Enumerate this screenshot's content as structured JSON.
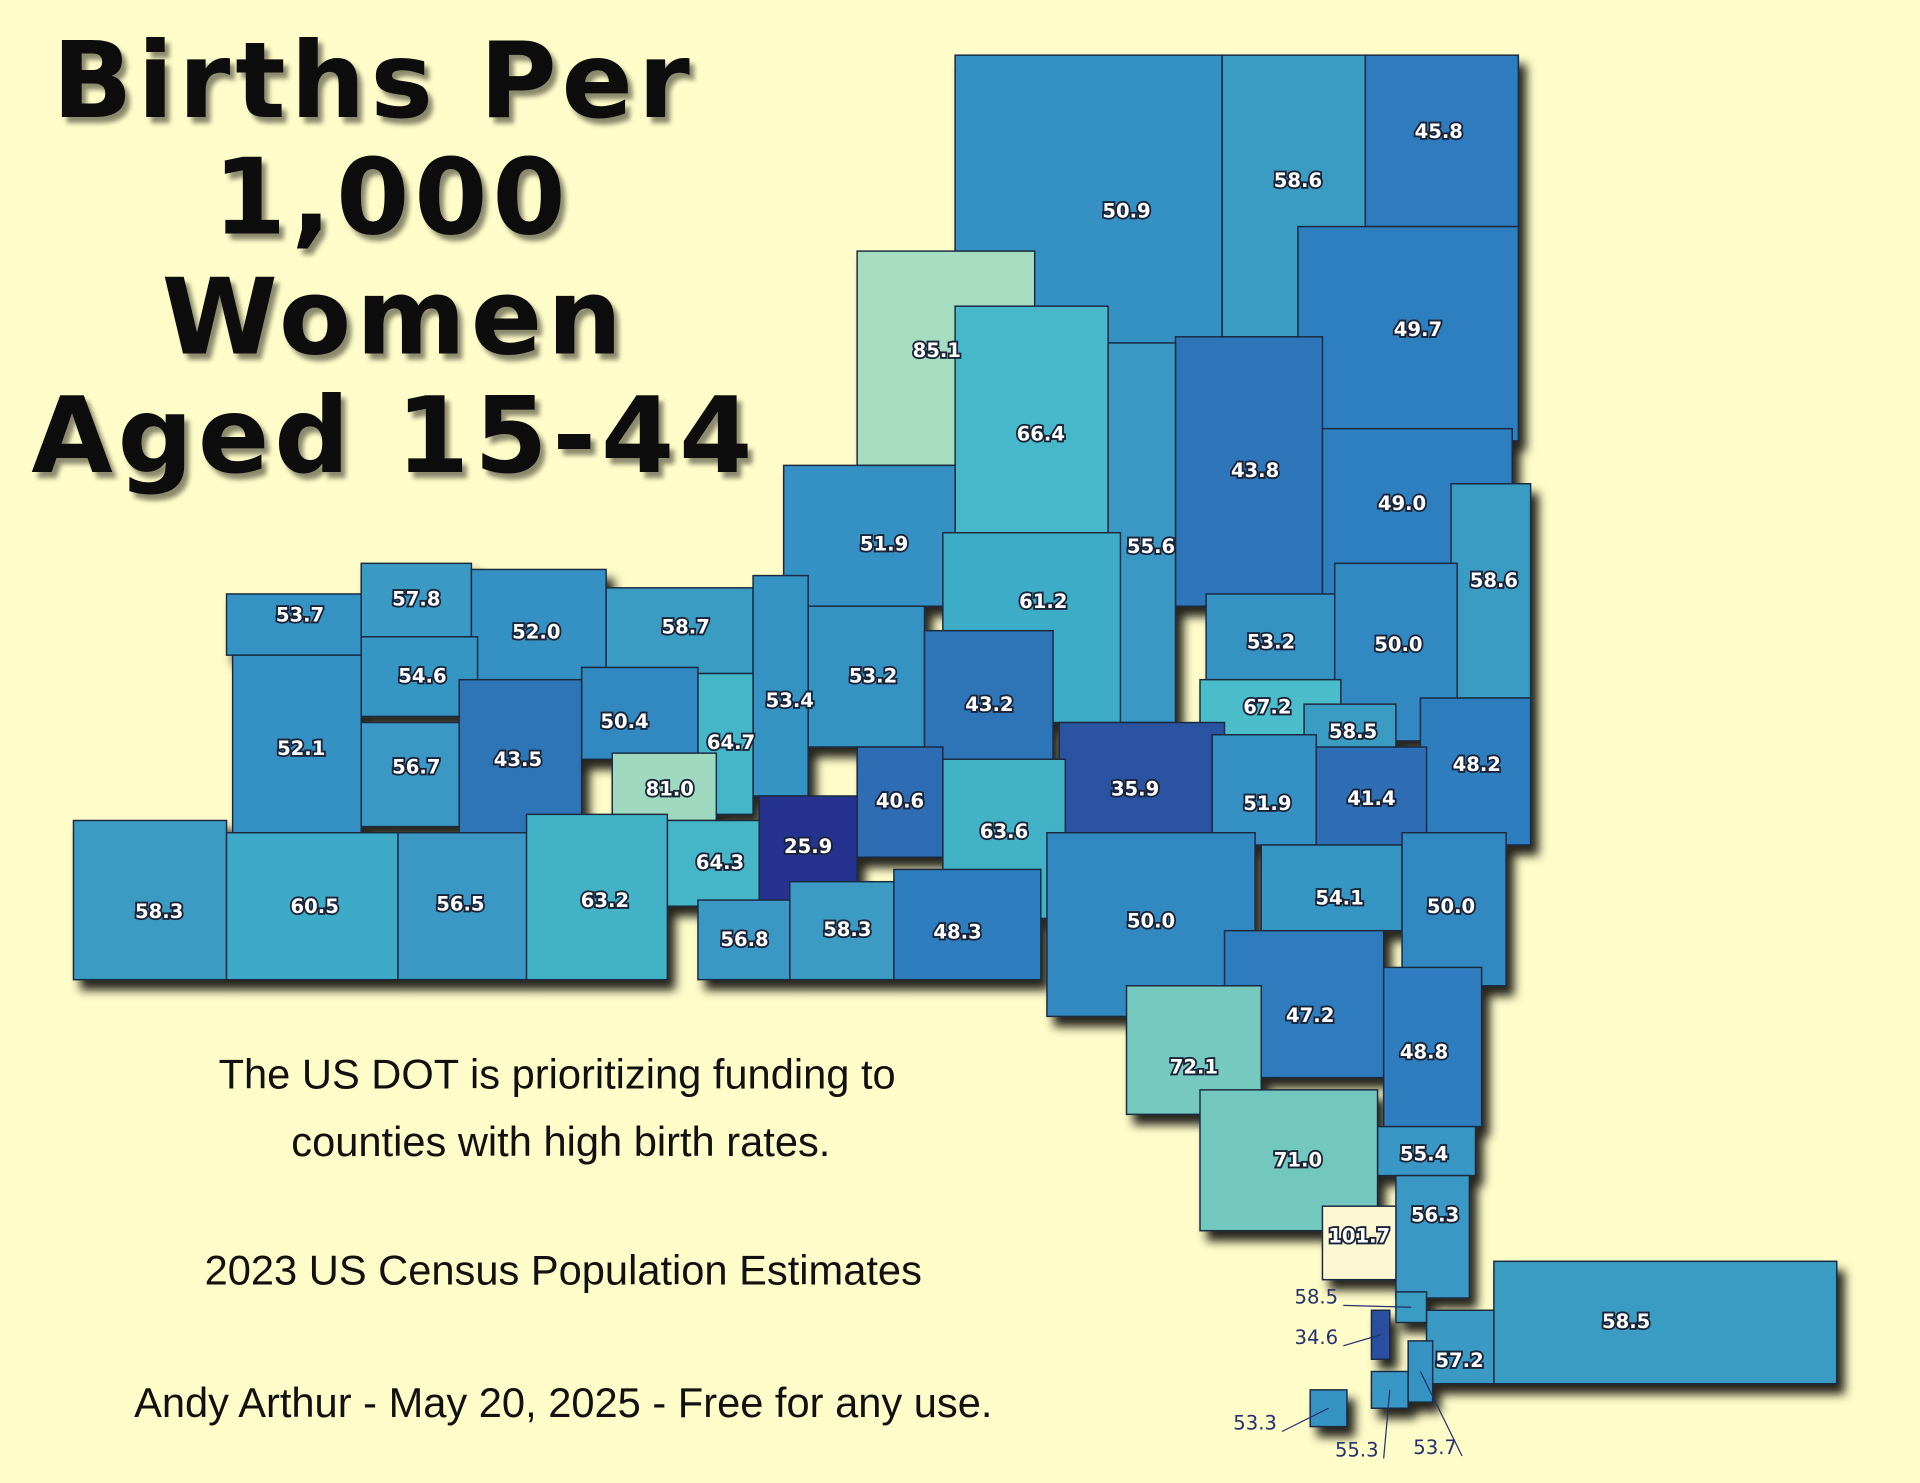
{
  "title_lines": [
    "Births Per",
    "1,000",
    "Women",
    "Aged 15-44"
  ],
  "notes": [
    "The US DOT is prioritizing funding to",
    "counties with high birth rates.",
    "2023 US Census Population Estimates",
    "Andy Arthur - May 20, 2025 - Free for any use."
  ],
  "regions": [
    {
      "value": 45.8,
      "color": "#2f7bbd"
    },
    {
      "value": 58.6,
      "color": "#3a9cc3"
    },
    {
      "value": 50.9,
      "color": "#3590c3"
    },
    {
      "value": 49.7,
      "color": "#2f7fbf"
    },
    {
      "value": 85.1,
      "color": "#a6dcc0"
    },
    {
      "value": 66.4,
      "color": "#46b8c9"
    },
    {
      "value": 43.8,
      "color": "#2f76b9"
    },
    {
      "value": 49.0,
      "label": "49.0",
      "color": "#2f7fbf"
    },
    {
      "value": 55.6,
      "color": "#3a98c4"
    },
    {
      "value": 58.6,
      "color": "#3a9cc3"
    },
    {
      "value": 51.9,
      "color": "#3590c3"
    },
    {
      "value": 61.2,
      "color": "#3eadc7"
    },
    {
      "value": 53.7,
      "color": "#3593c3"
    },
    {
      "value": 57.8,
      "color": "#3a9ac4"
    },
    {
      "value": 52.0,
      "label": "52.0",
      "color": "#3590c3"
    },
    {
      "value": 58.7,
      "color": "#3a9cc3"
    },
    {
      "value": 53.2,
      "color": "#3593c3"
    },
    {
      "value": 50.0,
      "label": "50.0",
      "color": "#3089c1"
    },
    {
      "value": 54.6,
      "color": "#3696c4"
    },
    {
      "value": 53.2,
      "color": "#3593c3"
    },
    {
      "value": 53.4,
      "color": "#3593c3"
    },
    {
      "value": 43.2,
      "color": "#2f74b8"
    },
    {
      "value": 67.2,
      "color": "#4bbcc9"
    },
    {
      "value": 52.1,
      "color": "#3590c3"
    },
    {
      "value": 50.4,
      "color": "#3089c1"
    },
    {
      "value": 64.7,
      "color": "#44b5c8"
    },
    {
      "value": 58.5,
      "color": "#3a9cc3"
    },
    {
      "value": 56.7,
      "color": "#3a98c4"
    },
    {
      "value": 43.5,
      "color": "#2f74b8"
    },
    {
      "value": 48.2,
      "color": "#2f7dbe"
    },
    {
      "value": 81.0,
      "label": "81.0",
      "color": "#9fd9c0"
    },
    {
      "value": 40.6,
      "color": "#2e6cb3"
    },
    {
      "value": 35.9,
      "color": "#2a52a2"
    },
    {
      "value": 51.9,
      "color": "#3590c3"
    },
    {
      "value": 41.4,
      "color": "#2e6eb4"
    },
    {
      "value": 63.6,
      "color": "#42b2c7"
    },
    {
      "value": 25.9,
      "color": "#26338f"
    },
    {
      "value": 64.3,
      "color": "#44b5c8"
    },
    {
      "value": 58.3,
      "color": "#3a9bc3"
    },
    {
      "value": 60.5,
      "color": "#3eaac7"
    },
    {
      "value": 56.5,
      "color": "#3a98c4"
    },
    {
      "value": 63.2,
      "color": "#42b2c7"
    },
    {
      "value": 56.8,
      "color": "#3a98c4"
    },
    {
      "value": 58.3,
      "color": "#3a9bc3"
    },
    {
      "value": 48.3,
      "color": "#2f7dbe"
    },
    {
      "value": 50.0,
      "label": "50.0",
      "color": "#3089c1"
    },
    {
      "value": 54.1,
      "color": "#3696c4"
    },
    {
      "value": 50.0,
      "label": "50.0",
      "color": "#3089c1"
    },
    {
      "value": 47.2,
      "color": "#2f7bbd"
    },
    {
      "value": 72.1,
      "color": "#74c9bf"
    },
    {
      "value": 48.8,
      "color": "#2f7dbe"
    },
    {
      "value": 55.4,
      "color": "#3997c4"
    },
    {
      "value": 71.0,
      "label": "71.0",
      "color": "#72c8be"
    },
    {
      "value": 56.3,
      "color": "#3a98c4"
    },
    {
      "value": 101.7,
      "color": "#fdf8d4"
    },
    {
      "value": 58.5,
      "color": "#3a9cc3"
    },
    {
      "value": 57.2,
      "color": "#3a9ac4"
    },
    {
      "value": 58.5,
      "color": "#3a9cc3"
    },
    {
      "value": 34.6,
      "color": "#2a4fa0"
    },
    {
      "value": 53.3,
      "color": "#3593c3"
    },
    {
      "value": 55.3,
      "color": "#3997c4"
    },
    {
      "value": 53.7,
      "color": "#3593c3"
    }
  ]
}
